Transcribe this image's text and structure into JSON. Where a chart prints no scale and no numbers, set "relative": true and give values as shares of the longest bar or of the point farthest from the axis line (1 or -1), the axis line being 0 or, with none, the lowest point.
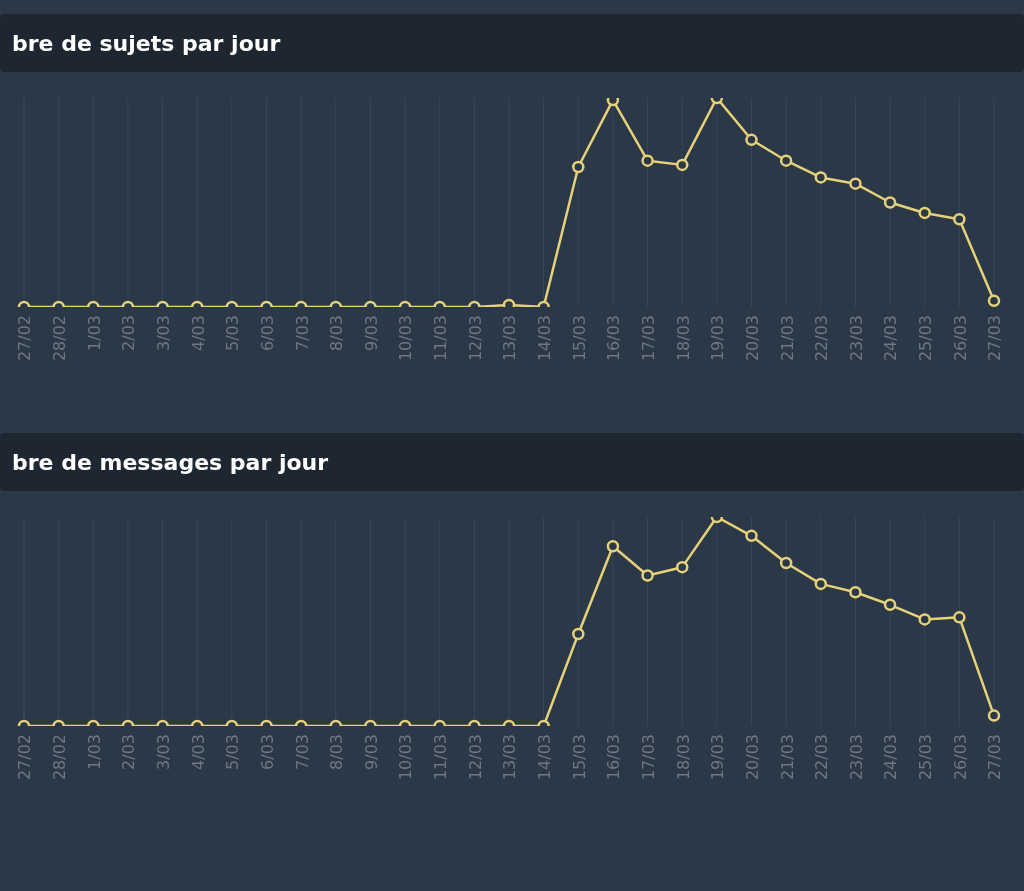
{
  "chart_data": [
    {
      "type": "line",
      "title": "bre de sujets par jour",
      "relative": true,
      "grid": "x",
      "marker": "circle",
      "categories": [
        "27/02",
        "28/02",
        "1/03",
        "2/03",
        "3/03",
        "4/03",
        "5/03",
        "6/03",
        "7/03",
        "8/03",
        "9/03",
        "10/03",
        "11/03",
        "12/03",
        "13/03",
        "14/03",
        "15/03",
        "16/03",
        "17/03",
        "18/03",
        "19/03",
        "20/03",
        "21/03",
        "22/03",
        "23/03",
        "24/03",
        "25/03",
        "26/03",
        "27/03"
      ],
      "series": [
        {
          "color": "#e6d178",
          "values": [
            0,
            0,
            0,
            0,
            0,
            0,
            0,
            0,
            0,
            0,
            0,
            0,
            0,
            0,
            0.01,
            0,
            0.67,
            0.99,
            0.7,
            0.68,
            1,
            0.8,
            0.7,
            0.62,
            0.59,
            0.5,
            0.45,
            0.42,
            0.03
          ]
        }
      ]
    },
    {
      "type": "line",
      "title": "bre de messages par jour",
      "relative": true,
      "grid": "x",
      "marker": "circle",
      "categories": [
        "27/02",
        "28/02",
        "1/03",
        "2/03",
        "3/03",
        "4/03",
        "5/03",
        "6/03",
        "7/03",
        "8/03",
        "9/03",
        "10/03",
        "11/03",
        "12/03",
        "13/03",
        "14/03",
        "15/03",
        "16/03",
        "17/03",
        "18/03",
        "19/03",
        "20/03",
        "21/03",
        "22/03",
        "23/03",
        "24/03",
        "25/03",
        "26/03",
        "27/03"
      ],
      "series": [
        {
          "color": "#e6d178",
          "values": [
            0,
            0,
            0,
            0,
            0,
            0,
            0,
            0,
            0,
            0,
            0,
            0,
            0,
            0,
            0,
            0,
            0.44,
            0.86,
            0.72,
            0.76,
            1,
            0.91,
            0.78,
            0.68,
            0.64,
            0.58,
            0.51,
            0.52,
            0.05
          ]
        }
      ]
    }
  ]
}
